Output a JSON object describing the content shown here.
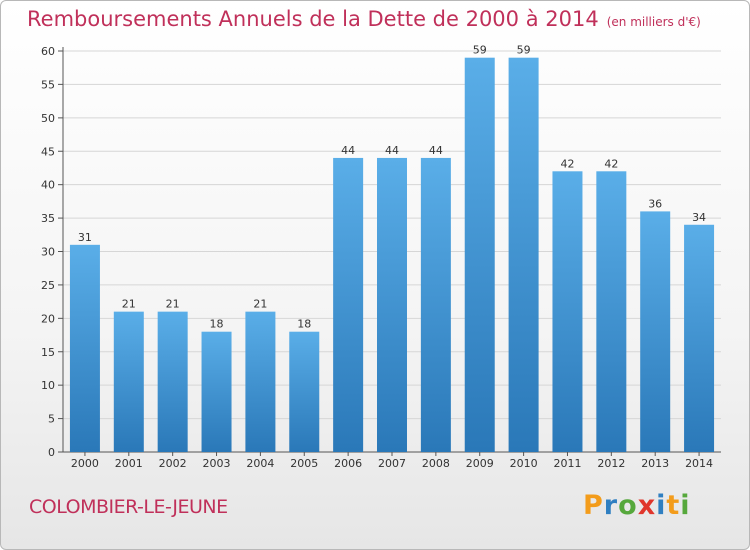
{
  "chart_data": {
    "type": "bar",
    "title": "Remboursements Annuels de la Dette de 2000 à 2014",
    "subtitle": "(en milliers d'€)",
    "xlabel": "",
    "ylabel": "",
    "categories": [
      "2000",
      "2001",
      "2002",
      "2003",
      "2004",
      "2005",
      "2006",
      "2007",
      "2008",
      "2009",
      "2010",
      "2011",
      "2012",
      "2013",
      "2014"
    ],
    "values": [
      31,
      21,
      21,
      18,
      21,
      18,
      44,
      44,
      44,
      59,
      59,
      42,
      42,
      36,
      34
    ],
    "ylim": [
      0,
      60
    ],
    "yticks": [
      0,
      5,
      10,
      15,
      20,
      25,
      30,
      35,
      40,
      45,
      50,
      55,
      60
    ],
    "grid": true,
    "legend": "none",
    "bar_color_top": "#5aaee8",
    "bar_color_bottom": "#2a78b8"
  },
  "footer": {
    "commune": "COLOMBIER-LE-JEUNE",
    "logo": {
      "p": "P",
      "r": "r",
      "o": "o",
      "x": "x",
      "i": "i",
      "t": "t",
      "i2": "i"
    }
  }
}
